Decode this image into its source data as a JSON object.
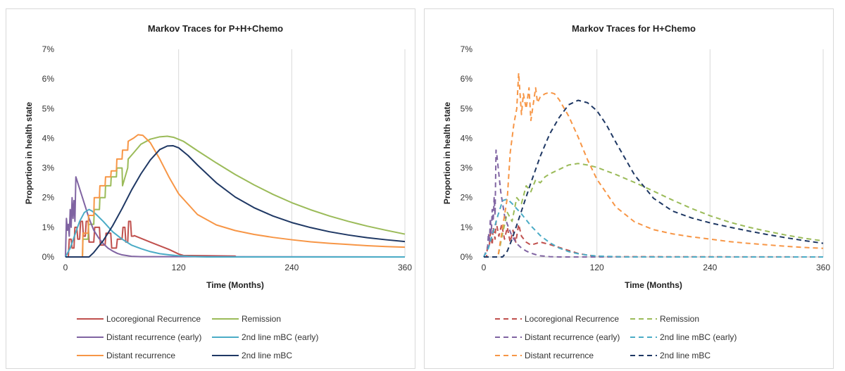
{
  "chart_data": [
    {
      "type": "line",
      "title": "Markov Traces for P+H+Chemo",
      "xlabel": "Time (Months)",
      "ylabel": "Proportion in health state",
      "xlim": [
        0,
        360
      ],
      "ylim": [
        0,
        0.07
      ],
      "xticks": [
        0,
        120,
        240,
        360
      ],
      "yticks": [
        0,
        0.01,
        0.02,
        0.03,
        0.04,
        0.05,
        0.06,
        0.07
      ],
      "ytick_labels": [
        "0%",
        "1%",
        "2%",
        "3%",
        "4%",
        "5%",
        "6%",
        "7%"
      ],
      "xtick_labels": [
        "0",
        "120",
        "240",
        "360"
      ],
      "line_style": "solid",
      "grid": "vertical",
      "legend_position": "bottom",
      "series": [
        {
          "name": "Locoregional Recurrence",
          "color": "#c0504d",
          "x": [
            0,
            3,
            4,
            6,
            7,
            9,
            10,
            12,
            13,
            15,
            16,
            18,
            19,
            21,
            22,
            24,
            25,
            30,
            31,
            36,
            37,
            42,
            43,
            48,
            49,
            54,
            55,
            60,
            61,
            63,
            64,
            66,
            67,
            69,
            70,
            72,
            73,
            90,
            110,
            120,
            125,
            150,
            180,
            181,
            360
          ],
          "y": [
            0,
            0,
            0.006,
            0.006,
            0.003,
            0.003,
            0.01,
            0.01,
            0.006,
            0.006,
            0.012,
            0.012,
            0.007,
            0.007,
            0.012,
            0.012,
            0.005,
            0.005,
            0.01,
            0.01,
            0.004,
            0.004,
            0.008,
            0.008,
            0.003,
            0.003,
            0.006,
            0.006,
            0.01,
            0.01,
            0.005,
            0.005,
            0.012,
            0.012,
            0.007,
            0.007,
            0.0072,
            0.005,
            0.0025,
            0.001,
            0.0005,
            0.0004,
            0.0003,
            0,
            0
          ]
        },
        {
          "name": "Remission",
          "color": "#9bbb59",
          "x": [
            0,
            18,
            18.5,
            24,
            24.5,
            30,
            30.5,
            36,
            36.5,
            42,
            42.5,
            48,
            48.5,
            54,
            54.5,
            60,
            60.5,
            66,
            66.5,
            72,
            80,
            90,
            100,
            108,
            115,
            125,
            140,
            160,
            180,
            200,
            220,
            240,
            260,
            280,
            300,
            320,
            340,
            360
          ],
          "y": [
            0,
            0,
            0.006,
            0.006,
            0.011,
            0.011,
            0.016,
            0.016,
            0.02,
            0.02,
            0.024,
            0.024,
            0.027,
            0.027,
            0.03,
            0.03,
            0.024,
            0.03,
            0.033,
            0.035,
            0.038,
            0.0397,
            0.0405,
            0.0407,
            0.0403,
            0.039,
            0.0358,
            0.0317,
            0.0278,
            0.0243,
            0.0211,
            0.0183,
            0.0159,
            0.0138,
            0.012,
            0.0104,
            0.009,
            0.0077
          ]
        },
        {
          "name": "Distant recurrence (early)",
          "color": "#8064a2",
          "x": [
            0,
            1,
            2,
            3,
            4,
            5,
            6,
            7,
            8,
            9,
            10,
            11,
            12,
            13,
            14,
            15,
            16,
            17,
            18,
            20,
            22,
            25,
            30,
            35,
            40,
            45,
            50,
            55,
            60,
            70,
            80,
            360
          ],
          "y": [
            0,
            0.013,
            0.009,
            0.011,
            0.007,
            0.016,
            0.01,
            0.02,
            0.013,
            0.019,
            0.012,
            0.027,
            0.026,
            0.025,
            0.024,
            0.023,
            0.022,
            0.021,
            0.02,
            0.018,
            0.016,
            0.013,
            0.009,
            0.0065,
            0.0045,
            0.003,
            0.002,
            0.0012,
            0.0007,
            0.0002,
            0.0001,
            0
          ]
        },
        {
          "name": "2nd line mBC (early)",
          "color": "#4bacc6",
          "x": [
            0,
            5,
            10,
            15,
            20,
            25,
            28,
            32,
            40,
            50,
            60,
            70,
            80,
            90,
            100,
            110,
            120,
            130,
            140,
            150,
            360
          ],
          "y": [
            0,
            0.003,
            0.0075,
            0.012,
            0.015,
            0.016,
            0.0155,
            0.0145,
            0.012,
            0.0085,
            0.006,
            0.004,
            0.0028,
            0.0018,
            0.0011,
            0.0007,
            0.0004,
            0.0002,
            0.0001,
            0,
            0
          ]
        },
        {
          "name": "Distant recurrence",
          "color": "#f79646",
          "x": [
            0,
            18,
            18.5,
            24,
            24.5,
            30,
            30.5,
            36,
            36.5,
            42,
            42.5,
            48,
            48.5,
            54,
            54.5,
            60,
            60.5,
            66,
            66.5,
            72,
            77,
            82,
            90,
            100,
            110,
            120,
            140,
            160,
            180,
            200,
            220,
            240,
            260,
            280,
            300,
            320,
            340,
            360
          ],
          "y": [
            0,
            0,
            0.008,
            0.008,
            0.014,
            0.014,
            0.02,
            0.02,
            0.024,
            0.024,
            0.027,
            0.027,
            0.029,
            0.029,
            0.033,
            0.033,
            0.036,
            0.036,
            0.039,
            0.04,
            0.0412,
            0.041,
            0.0385,
            0.033,
            0.0268,
            0.0213,
            0.0143,
            0.0108,
            0.0089,
            0.0076,
            0.0066,
            0.0058,
            0.0051,
            0.0046,
            0.0042,
            0.0038,
            0.0035,
            0.0033
          ]
        },
        {
          "name": "2nd line mBC",
          "color": "#1f3864",
          "x": [
            0,
            25,
            30,
            40,
            50,
            60,
            70,
            80,
            90,
            100,
            108,
            114,
            120,
            130,
            140,
            160,
            180,
            200,
            220,
            240,
            260,
            280,
            300,
            320,
            340,
            360
          ],
          "y": [
            0,
            0,
            0.0015,
            0.0055,
            0.0105,
            0.0163,
            0.0225,
            0.028,
            0.0327,
            0.0362,
            0.0374,
            0.0375,
            0.0368,
            0.0342,
            0.031,
            0.025,
            0.0202,
            0.0166,
            0.0138,
            0.0116,
            0.0099,
            0.0085,
            0.0074,
            0.0065,
            0.0058,
            0.0052
          ]
        }
      ]
    },
    {
      "type": "line",
      "title": "Markov Traces for H+Chemo",
      "xlabel": "Time (Months)",
      "ylabel": "Proportion in health state",
      "xlim": [
        0,
        360
      ],
      "ylim": [
        0,
        0.07
      ],
      "xticks": [
        0,
        120,
        240,
        360
      ],
      "yticks": [
        0,
        0.01,
        0.02,
        0.03,
        0.04,
        0.05,
        0.06,
        0.07
      ],
      "ytick_labels": [
        "0%",
        "1%",
        "2%",
        "3%",
        "4%",
        "5%",
        "6%",
        "7%"
      ],
      "xtick_labels": [
        "0",
        "120",
        "240",
        "360"
      ],
      "line_style": "dashed",
      "grid": "vertical",
      "legend_position": "bottom",
      "series": [
        {
          "name": "Locoregional Recurrence",
          "color": "#c0504d",
          "x": [
            0,
            3,
            4,
            6,
            7,
            9,
            10,
            12,
            13,
            16,
            19,
            22,
            25,
            28,
            31,
            34,
            37,
            40,
            45,
            50,
            55,
            60,
            70,
            80,
            90,
            100,
            110,
            120,
            130,
            360
          ],
          "y": [
            0,
            0,
            0.004,
            0.004,
            0.008,
            0.004,
            0.01,
            0.006,
            0.012,
            0.007,
            0.011,
            0.006,
            0.01,
            0.005,
            0.009,
            0.005,
            0.011,
            0.007,
            0.005,
            0.004,
            0.0045,
            0.005,
            0.0042,
            0.0032,
            0.0022,
            0.0012,
            0.0006,
            0.0003,
            0.0001,
            0
          ]
        },
        {
          "name": "Remission",
          "color": "#9bbb59",
          "x": [
            0,
            15,
            20,
            25,
            30,
            35,
            40,
            45,
            50,
            55,
            60,
            65,
            70,
            80,
            90,
            100,
            110,
            120,
            140,
            160,
            180,
            200,
            220,
            240,
            260,
            280,
            300,
            320,
            340,
            360
          ],
          "y": [
            0,
            0,
            0.008,
            0.015,
            0.012,
            0.02,
            0.018,
            0.024,
            0.022,
            0.026,
            0.025,
            0.027,
            0.028,
            0.0295,
            0.031,
            0.0315,
            0.031,
            0.0302,
            0.0278,
            0.0251,
            0.0222,
            0.0192,
            0.0164,
            0.0139,
            0.0118,
            0.0101,
            0.0087,
            0.0074,
            0.0063,
            0.0054
          ]
        },
        {
          "name": "Distant recurrence (early)",
          "color": "#8064a2",
          "x": [
            0,
            4,
            5,
            6,
            7,
            8,
            9,
            10,
            11,
            12,
            13,
            14,
            15,
            16,
            17,
            18,
            20,
            22,
            25,
            30,
            35,
            40,
            45,
            50,
            55,
            60,
            70,
            80,
            360
          ],
          "y": [
            0,
            0.003,
            0.008,
            0.005,
            0.013,
            0.008,
            0.016,
            0.012,
            0.02,
            0.014,
            0.036,
            0.034,
            0.031,
            0.028,
            0.025,
            0.022,
            0.018,
            0.014,
            0.011,
            0.007,
            0.0045,
            0.003,
            0.002,
            0.0013,
            0.0008,
            0.0004,
            0.0001,
            0,
            0
          ]
        },
        {
          "name": "2nd line mBC (early)",
          "color": "#4bacc6",
          "x": [
            0,
            5,
            10,
            15,
            20,
            25,
            30,
            40,
            50,
            60,
            70,
            80,
            90,
            100,
            110,
            120,
            130,
            140,
            150,
            360
          ],
          "y": [
            0,
            0.003,
            0.0085,
            0.014,
            0.019,
            0.0195,
            0.018,
            0.0145,
            0.0105,
            0.0072,
            0.0048,
            0.003,
            0.0018,
            0.0011,
            0.0006,
            0.0003,
            0.0002,
            0.0001,
            0,
            0
          ]
        },
        {
          "name": "Distant recurrence",
          "color": "#f79646",
          "x": [
            0,
            15,
            20,
            25,
            28,
            30,
            32,
            35,
            37,
            40,
            42,
            45,
            48,
            50,
            55,
            57,
            60,
            65,
            70,
            75,
            80,
            90,
            100,
            110,
            120,
            140,
            160,
            180,
            200,
            220,
            240,
            260,
            280,
            300,
            320,
            340,
            360
          ],
          "y": [
            0,
            0,
            0.01,
            0.02,
            0.035,
            0.04,
            0.045,
            0.05,
            0.062,
            0.048,
            0.055,
            0.05,
            0.057,
            0.046,
            0.057,
            0.052,
            0.054,
            0.055,
            0.0555,
            0.055,
            0.053,
            0.0475,
            0.0405,
            0.0328,
            0.0262,
            0.0169,
            0.0118,
            0.0092,
            0.0078,
            0.0068,
            0.006,
            0.0052,
            0.0046,
            0.0041,
            0.0036,
            0.0032,
            0.0029
          ]
        },
        {
          "name": "2nd line mBC",
          "color": "#1f3864",
          "x": [
            0,
            20,
            25,
            30,
            40,
            50,
            60,
            70,
            80,
            90,
            100,
            110,
            120,
            130,
            140,
            160,
            180,
            200,
            220,
            240,
            260,
            280,
            300,
            320,
            340,
            360
          ],
          "y": [
            0,
            0,
            0.002,
            0.006,
            0.0155,
            0.025,
            0.034,
            0.0415,
            0.047,
            0.0513,
            0.0528,
            0.052,
            0.0493,
            0.0446,
            0.0387,
            0.0276,
            0.0198,
            0.0155,
            0.0132,
            0.0115,
            0.0101,
            0.0088,
            0.0076,
            0.0065,
            0.0055,
            0.0046
          ]
        }
      ]
    }
  ]
}
